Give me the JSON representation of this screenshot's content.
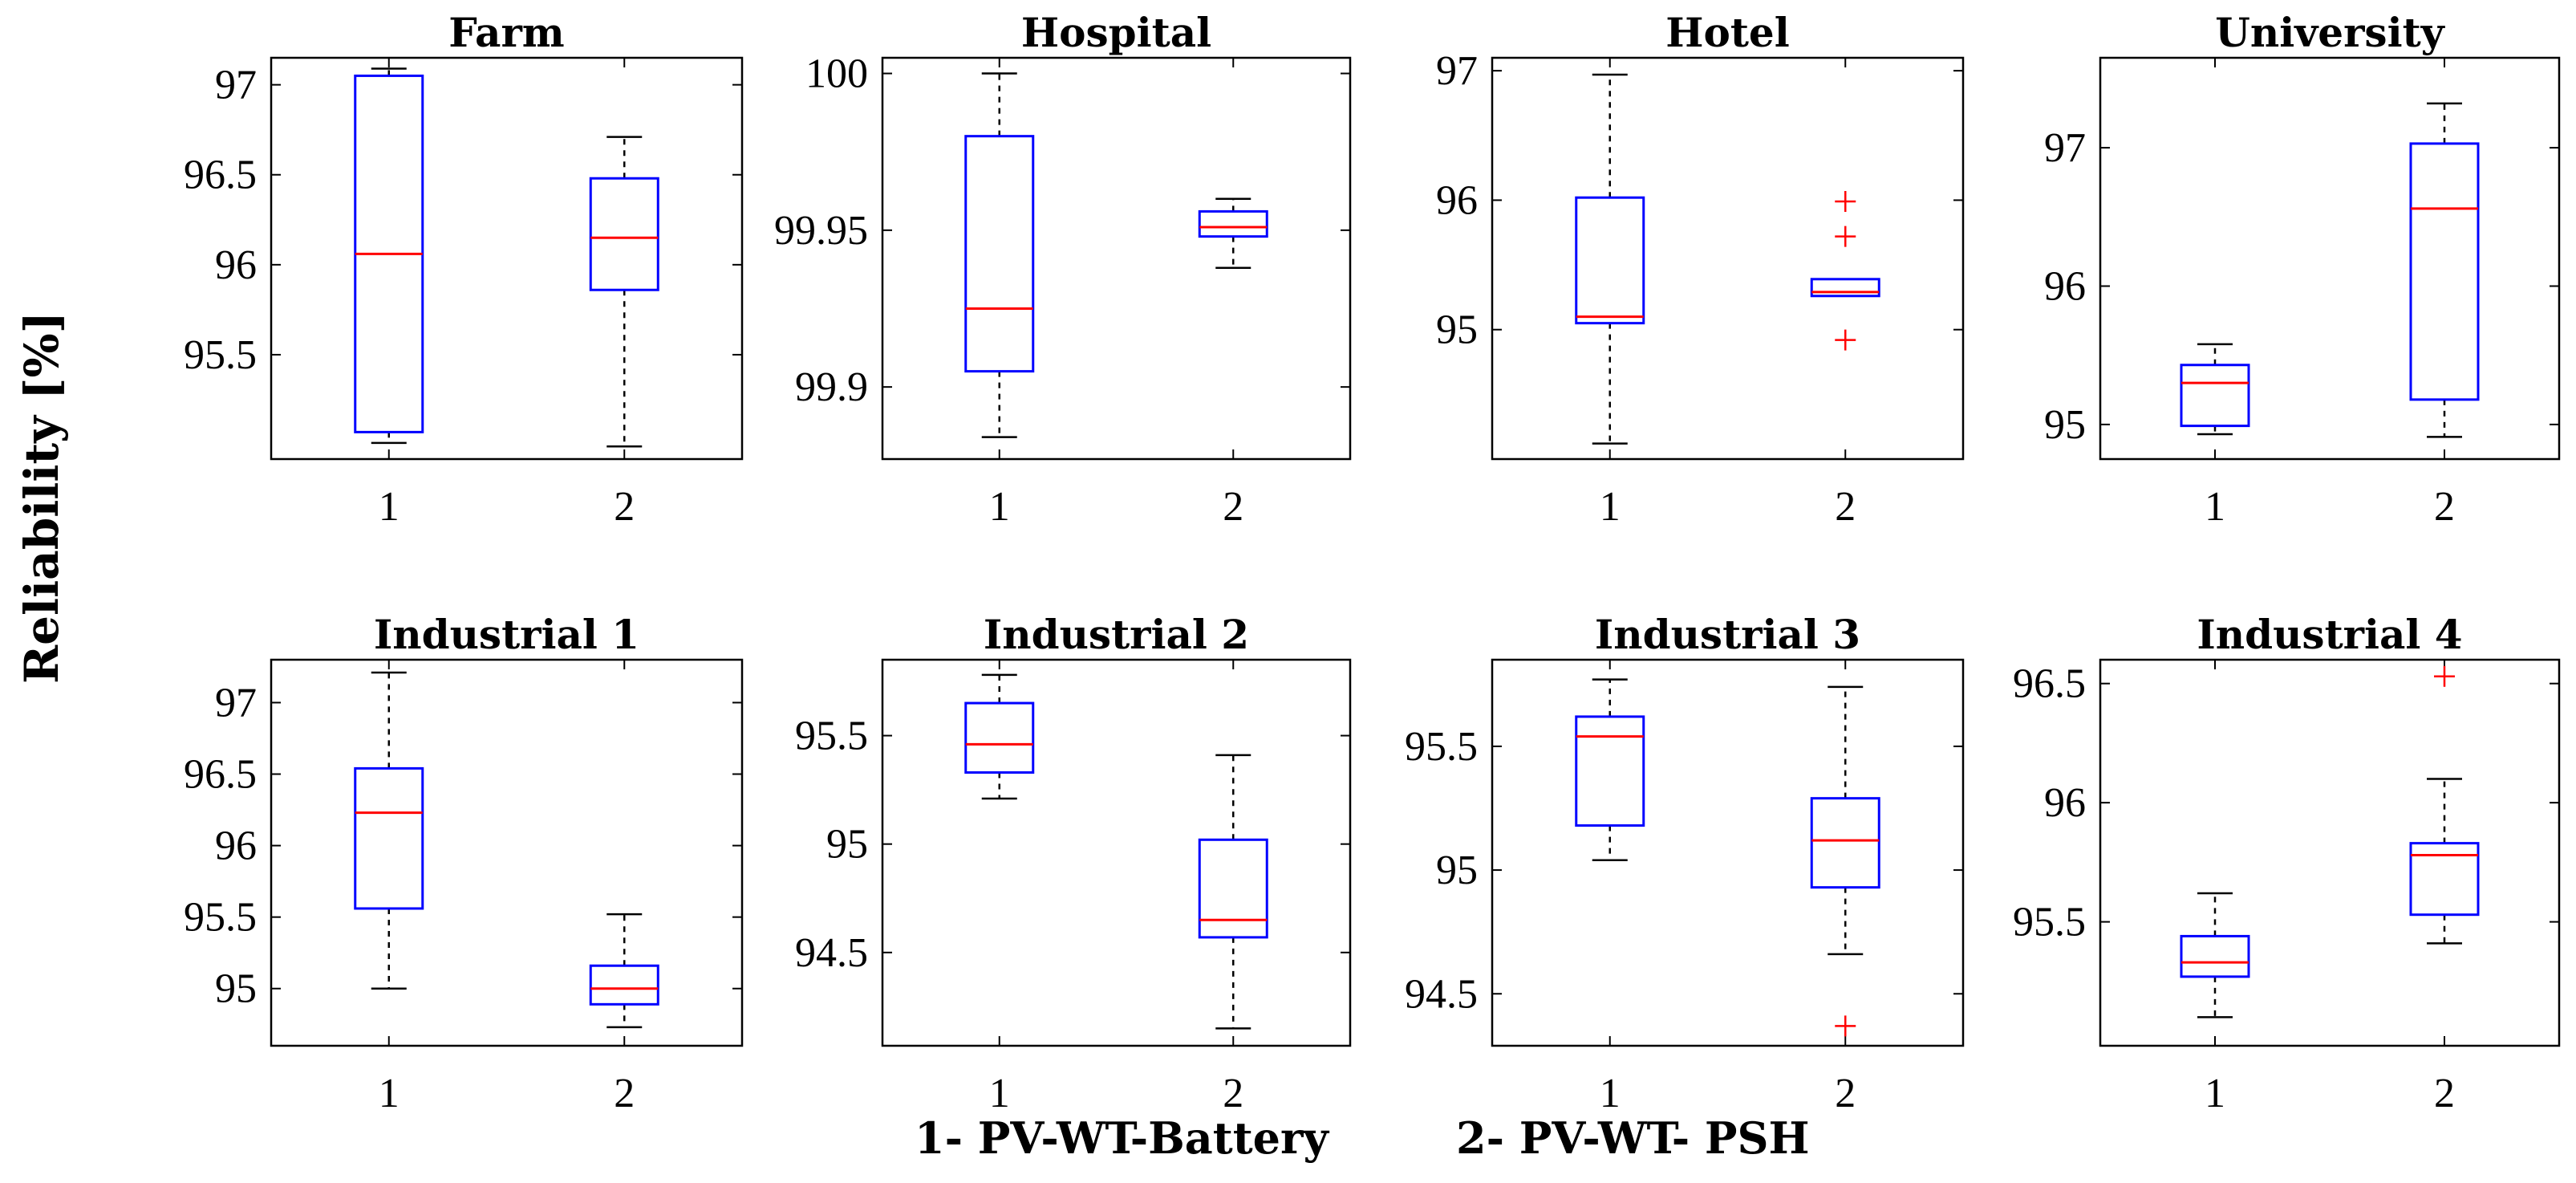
{
  "figure": {
    "ylabel": "Reliability [%]",
    "footer_left": "1- PV-WT-Battery",
    "footer_right": "2- PV-WT- PSH"
  },
  "colors": {
    "box": "#0000ff",
    "median": "#ff0000",
    "whisker": "#000000",
    "outlier": "#ff0000",
    "axis": "#000000"
  },
  "chart_data": [
    {
      "type": "box",
      "title": "Farm",
      "categories": [
        "1",
        "2"
      ],
      "ylim": [
        94.92,
        97.15
      ],
      "yticks": [
        95.5,
        96,
        96.5,
        97
      ],
      "ytick_labels": [
        "95.5",
        "96",
        "96.5",
        "97"
      ],
      "boxes": [
        {
          "min": 95.01,
          "q1": 95.07,
          "median": 96.06,
          "q3": 97.05,
          "max": 97.09,
          "outliers": []
        },
        {
          "min": 94.99,
          "q1": 95.86,
          "median": 96.15,
          "q3": 96.48,
          "max": 96.71,
          "outliers": []
        }
      ]
    },
    {
      "type": "box",
      "title": "Hospital",
      "categories": [
        "1",
        "2"
      ],
      "ylim": [
        99.877,
        100.005
      ],
      "yticks": [
        99.9,
        99.95,
        100
      ],
      "ytick_labels": [
        "99.9",
        "99.95",
        "100"
      ],
      "boxes": [
        {
          "min": 99.884,
          "q1": 99.905,
          "median": 99.925,
          "q3": 99.98,
          "max": 100.0,
          "outliers": []
        },
        {
          "min": 99.938,
          "q1": 99.948,
          "median": 99.951,
          "q3": 99.956,
          "max": 99.96,
          "outliers": []
        }
      ]
    },
    {
      "type": "box",
      "title": "Hotel",
      "categories": [
        "1",
        "2"
      ],
      "ylim": [
        94.0,
        97.1
      ],
      "yticks": [
        95,
        96,
        97
      ],
      "ytick_labels": [
        "95",
        "96",
        "97"
      ],
      "boxes": [
        {
          "min": 94.12,
          "q1": 95.05,
          "median": 95.1,
          "q3": 96.02,
          "max": 96.97,
          "outliers": []
        },
        {
          "min": 95.26,
          "q1": 95.26,
          "median": 95.29,
          "q3": 95.39,
          "max": 95.39,
          "outliers": [
            95.99,
            95.72,
            94.92
          ]
        }
      ]
    },
    {
      "type": "box",
      "title": "University",
      "categories": [
        "1",
        "2"
      ],
      "ylim": [
        94.75,
        97.65
      ],
      "yticks": [
        95,
        96,
        97
      ],
      "ytick_labels": [
        "95",
        "96",
        "97"
      ],
      "boxes": [
        {
          "min": 94.93,
          "q1": 94.99,
          "median": 95.3,
          "q3": 95.43,
          "max": 95.58,
          "outliers": []
        },
        {
          "min": 94.91,
          "q1": 95.18,
          "median": 96.56,
          "q3": 97.03,
          "max": 97.32,
          "outliers": []
        }
      ]
    },
    {
      "type": "box",
      "title": "Industrial 1",
      "categories": [
        "1",
        "2"
      ],
      "ylim": [
        94.6,
        97.3
      ],
      "yticks": [
        95,
        95.5,
        96,
        96.5,
        97
      ],
      "ytick_labels": [
        "95",
        "95.5",
        "96",
        "96.5",
        "97"
      ],
      "boxes": [
        {
          "min": 95.0,
          "q1": 95.56,
          "median": 96.23,
          "q3": 96.54,
          "max": 97.21,
          "outliers": []
        },
        {
          "min": 94.73,
          "q1": 94.89,
          "median": 95.0,
          "q3": 95.16,
          "max": 95.52,
          "outliers": []
        }
      ]
    },
    {
      "type": "box",
      "title": "Industrial 2",
      "categories": [
        "1",
        "2"
      ],
      "ylim": [
        94.07,
        95.85
      ],
      "yticks": [
        94.5,
        95,
        95.5
      ],
      "ytick_labels": [
        "94.5",
        "95",
        "95.5"
      ],
      "boxes": [
        {
          "min": 95.21,
          "q1": 95.33,
          "median": 95.46,
          "q3": 95.65,
          "max": 95.78,
          "outliers": []
        },
        {
          "min": 94.15,
          "q1": 94.57,
          "median": 94.65,
          "q3": 95.02,
          "max": 95.41,
          "outliers": []
        }
      ]
    },
    {
      "type": "box",
      "title": "Industrial 3",
      "categories": [
        "1",
        "2"
      ],
      "ylim": [
        94.29,
        95.85
      ],
      "yticks": [
        94.5,
        95,
        95.5
      ],
      "ytick_labels": [
        "94.5",
        "95",
        "95.5"
      ],
      "boxes": [
        {
          "min": 95.04,
          "q1": 95.18,
          "median": 95.54,
          "q3": 95.62,
          "max": 95.77,
          "outliers": []
        },
        {
          "min": 94.66,
          "q1": 94.93,
          "median": 95.12,
          "q3": 95.29,
          "max": 95.74,
          "outliers": [
            94.37
          ]
        }
      ]
    },
    {
      "type": "box",
      "title": "Industrial 4",
      "categories": [
        "1",
        "2"
      ],
      "ylim": [
        94.98,
        96.6
      ],
      "yticks": [
        95.5,
        96,
        96.5
      ],
      "ytick_labels": [
        "95.5",
        "96",
        "96.5"
      ],
      "boxes": [
        {
          "min": 95.1,
          "q1": 95.27,
          "median": 95.33,
          "q3": 95.44,
          "max": 95.62,
          "outliers": []
        },
        {
          "min": 95.41,
          "q1": 95.53,
          "median": 95.78,
          "q3": 95.83,
          "max": 96.1,
          "outliers": [
            96.53
          ]
        }
      ]
    }
  ]
}
